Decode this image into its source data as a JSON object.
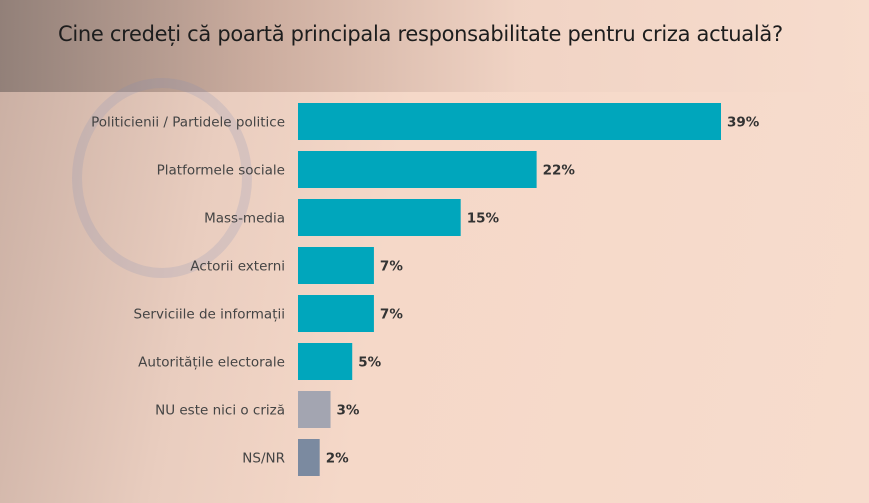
{
  "chart_data": {
    "type": "bar",
    "orientation": "horizontal",
    "title": "Cine credeți că poartă principala responsabilitate pentru criza actuală?",
    "categories": [
      "Politicienii / Partidele politice",
      "Platformele sociale",
      "Mass-media",
      "Actorii externi",
      "Serviciile de informații",
      "Autoritățile electorale",
      "NU este nici o criză",
      "NS/NR"
    ],
    "values": [
      39,
      22,
      15,
      7,
      7,
      5,
      3,
      2
    ],
    "value_labels": [
      "39%",
      "22%",
      "15%",
      "7%",
      "7%",
      "5%",
      "3%",
      "2%"
    ],
    "colors": [
      "#00a6bc",
      "#00a6bc",
      "#00a6bc",
      "#00a6bc",
      "#00a6bc",
      "#00a6bc",
      "#a3a5b1",
      "#7b8aa0"
    ],
    "xlabel": "",
    "ylabel": "",
    "xlim": [
      0,
      39
    ],
    "grid": false
  }
}
